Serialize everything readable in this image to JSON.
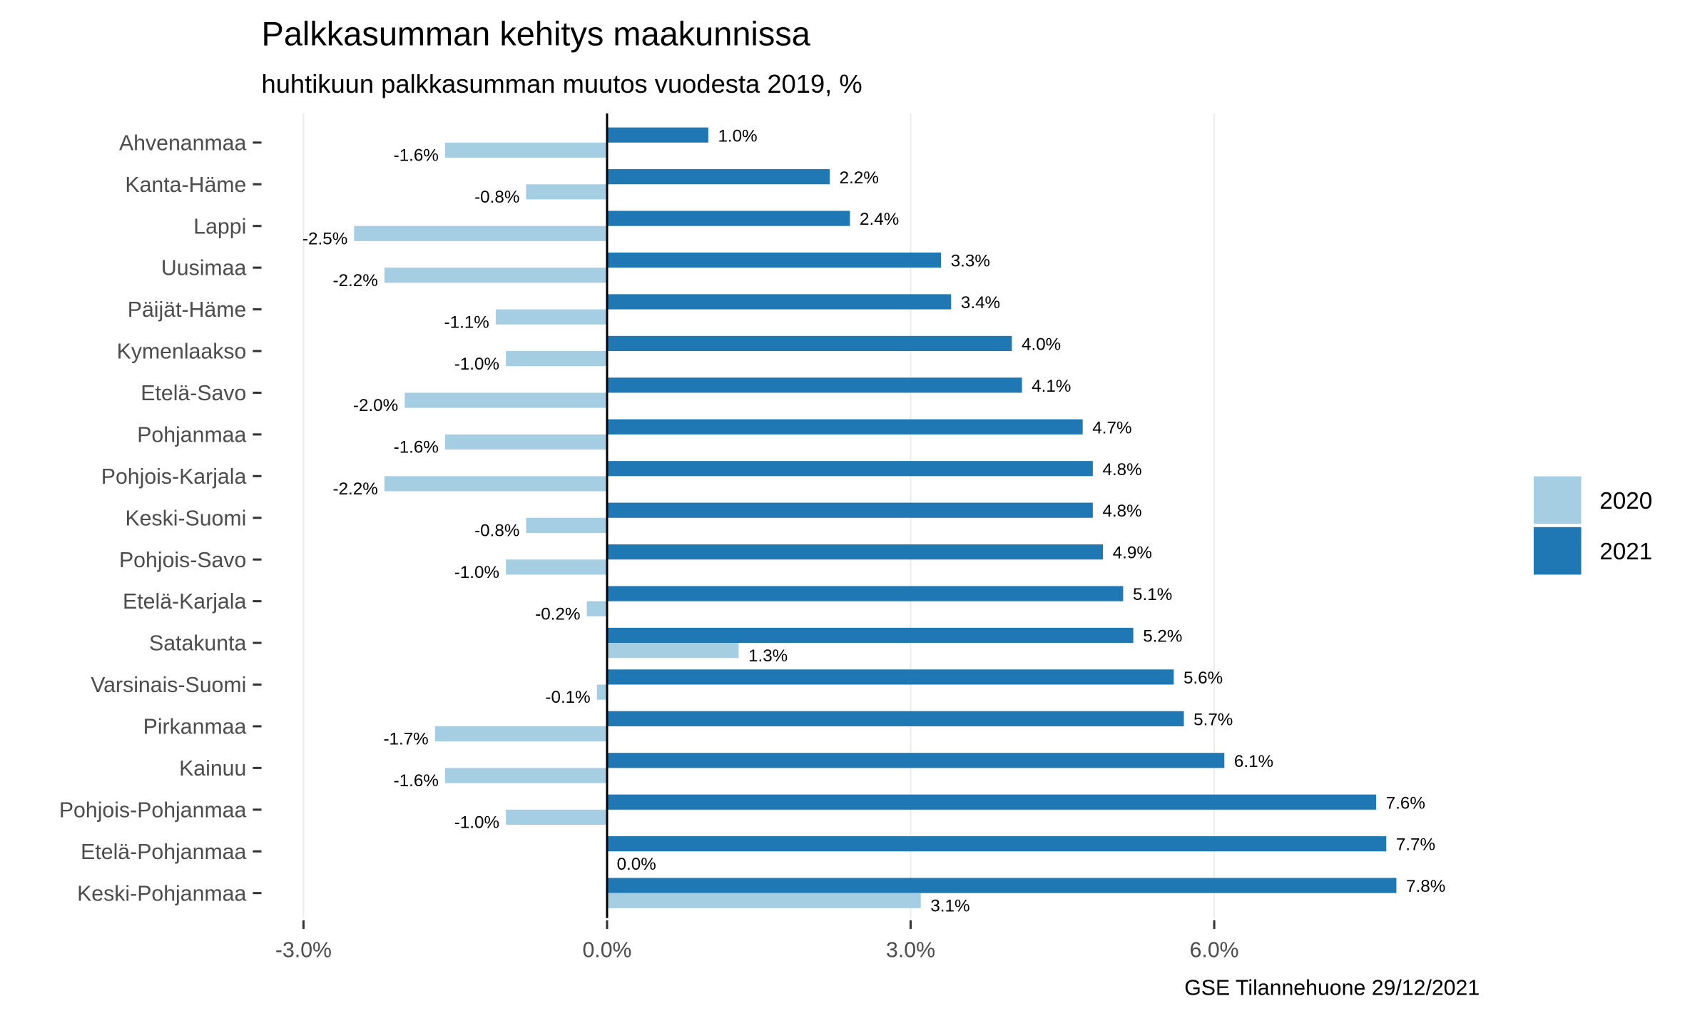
{
  "chart_data": {
    "type": "bar",
    "orientation": "horizontal",
    "title": "Palkkasumman kehitys maakunnissa",
    "subtitle": "huhtikuun palkkasumman muutos vuodesta 2019, %",
    "caption": "GSE Tilannehuone 29/12/2021",
    "xlabel": "",
    "ylabel": "",
    "xlim": [
      -4.0,
      8.4
    ],
    "xticks": [
      -3,
      0,
      3,
      6
    ],
    "xtick_labels": [
      "-3.0%",
      "0.0%",
      "3.0%",
      "6.0%"
    ],
    "grid": true,
    "legend_position": "right",
    "categories": [
      "Ahvenanmaa",
      "Kanta-Häme",
      "Lappi",
      "Uusimaa",
      "Päijät-Häme",
      "Kymenlaakso",
      "Etelä-Savo",
      "Pohjanmaa",
      "Pohjois-Karjala",
      "Keski-Suomi",
      "Pohjois-Savo",
      "Etelä-Karjala",
      "Satakunta",
      "Varsinais-Suomi",
      "Pirkanmaa",
      "Kainuu",
      "Pohjois-Pohjanmaa",
      "Etelä-Pohjanmaa",
      "Keski-Pohjanmaa"
    ],
    "series": [
      {
        "name": "2020",
        "color": "#a6cee3",
        "values": [
          -1.6,
          -0.8,
          -2.5,
          -2.2,
          -1.1,
          -1.0,
          -2.0,
          -1.6,
          -2.2,
          -0.8,
          -1.0,
          -0.2,
          1.3,
          -0.1,
          -1.7,
          -1.6,
          -1.0,
          0.0,
          3.1
        ],
        "labels": [
          "-1.6%",
          "-0.8%",
          "-2.5%",
          "-2.2%",
          "-1.1%",
          "-1.0%",
          "-2.0%",
          "-1.6%",
          "-2.2%",
          "-0.8%",
          "-1.0%",
          "-0.2%",
          "1.3%",
          "-0.1%",
          "-1.7%",
          "-1.6%",
          "-1.0%",
          "0.0%",
          "3.1%"
        ]
      },
      {
        "name": "2021",
        "color": "#1f78b4",
        "values": [
          1.0,
          2.2,
          2.4,
          3.3,
          3.4,
          4.0,
          4.1,
          4.7,
          4.8,
          4.8,
          4.9,
          5.1,
          5.2,
          5.6,
          5.7,
          6.1,
          7.6,
          7.7,
          7.8
        ],
        "labels": [
          "1.0%",
          "2.2%",
          "2.4%",
          "3.3%",
          "3.4%",
          "4.0%",
          "4.1%",
          "4.7%",
          "4.8%",
          "4.8%",
          "4.9%",
          "5.1%",
          "5.2%",
          "5.6%",
          "5.7%",
          "6.1%",
          "7.6%",
          "7.7%",
          "7.8%"
        ]
      }
    ]
  }
}
